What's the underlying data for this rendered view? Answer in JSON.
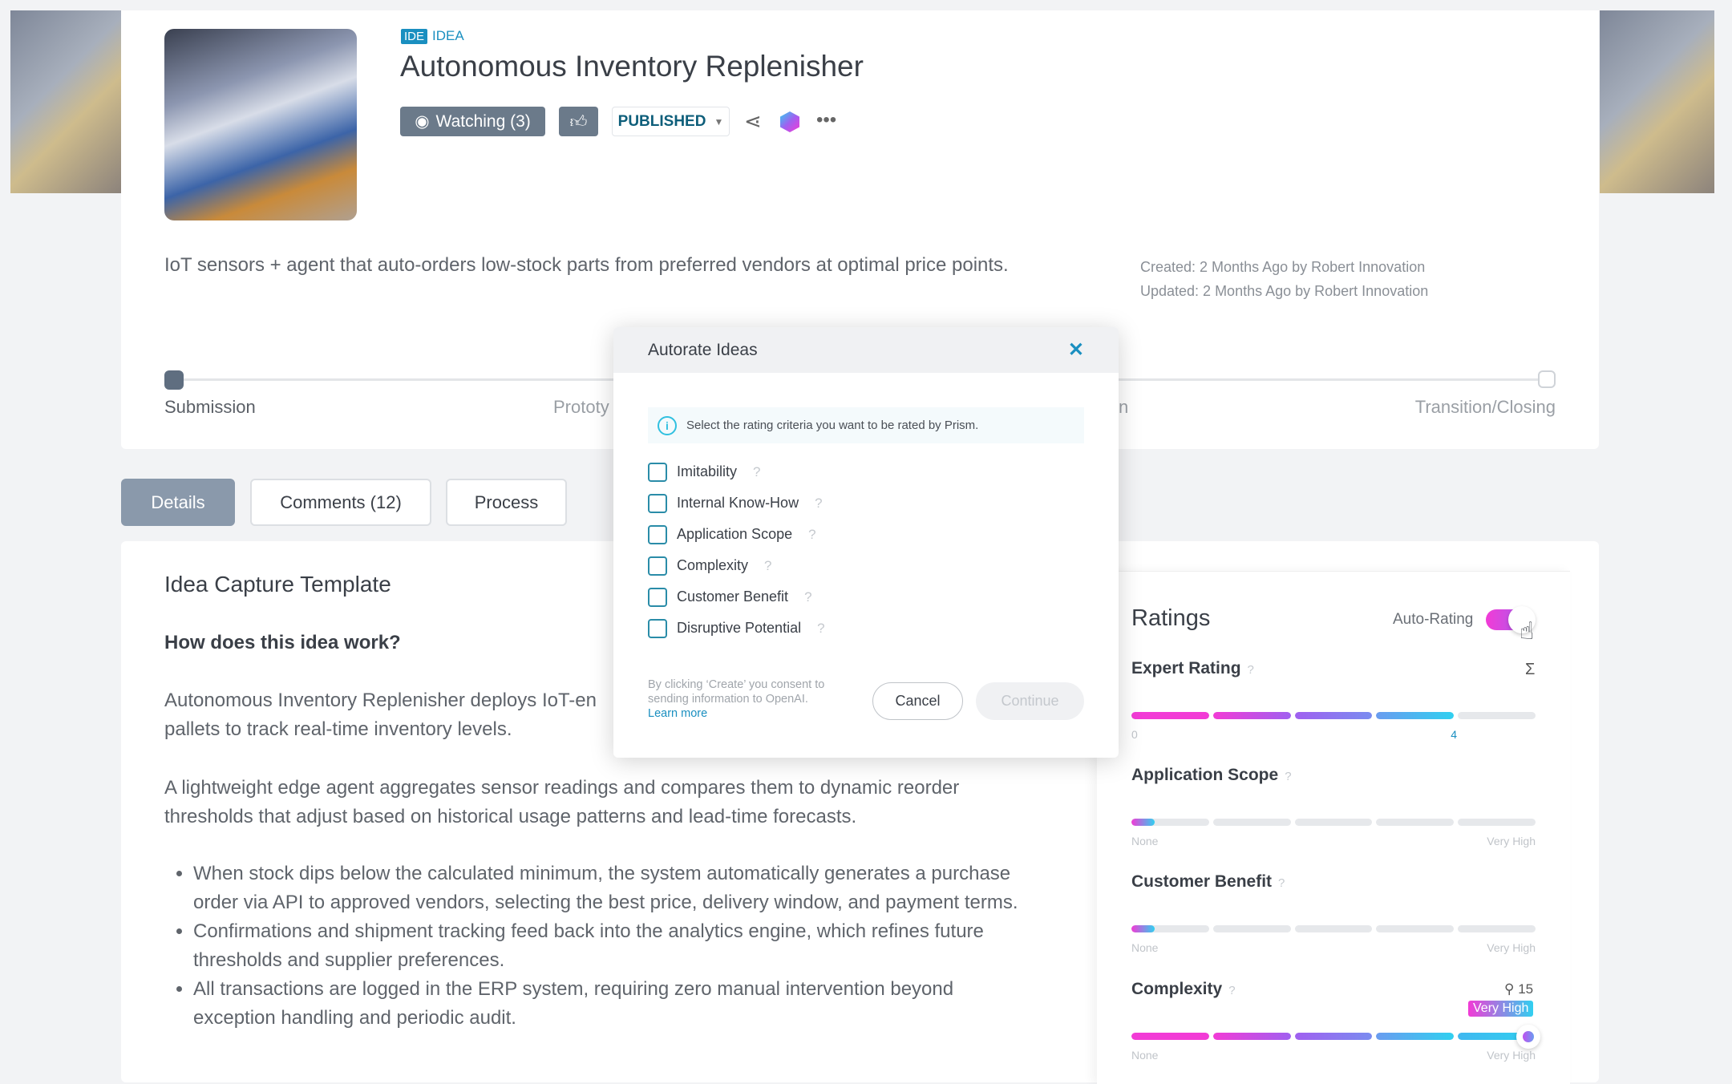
{
  "header": {
    "type_badge": "IDE",
    "type_label": "IDEA",
    "title": "Autonomous Inventory Replenisher",
    "watching_label": "Watching (3)",
    "status_select": "PUBLISHED",
    "description": "IoT sensors + agent that auto-orders low-stock parts from preferred vendors at optimal price points.",
    "created": "Created: 2 Months Ago by Robert Innovation",
    "updated": "Updated: 2 Months Ago by Robert Innovation"
  },
  "stages": [
    {
      "label": "Submission",
      "state": "current"
    },
    {
      "label": "Prototy",
      "state": "pending"
    },
    {
      "label": "n",
      "state": "pending"
    },
    {
      "label": "Transition/Closing",
      "state": "pending"
    }
  ],
  "tabs": [
    {
      "label": "Details",
      "active": true
    },
    {
      "label": "Comments (12)"
    },
    {
      "label": "Process"
    }
  ],
  "content": {
    "template_title": "Idea Capture Template",
    "question": "How does this idea work?",
    "p1": "Autonomous Inventory Replenisher deploys IoT-en",
    "p1b": "pallets to track real-time inventory levels.",
    "p2": "A lightweight edge agent aggregates sensor readings and compares them to dynamic reorder thresholds that adjust based on historical usage patterns and lead-time forecasts.",
    "bullets": [
      "When stock dips below the calculated minimum, the system automatically generates a purchase order via API to approved vendors, selecting the best price, delivery window, and payment terms.",
      "Confirmations and shipment tracking feed back into the analytics engine, which refines future thresholds and supplier preferences.",
      "All transactions are logged in the ERP system, requiring zero manual intervention beyond exception handling and periodic audit."
    ]
  },
  "ratings": {
    "title": "Ratings",
    "auto_rating_label": "Auto-Rating",
    "auto_rating_on": true,
    "items": [
      {
        "label": "Expert Rating",
        "min_label": "0",
        "value_label": "4",
        "value": 4,
        "max": 5
      },
      {
        "label": "Application Scope",
        "min_label": "None",
        "max_label": "Very High",
        "value": 0.3,
        "max": 5
      },
      {
        "label": "Customer Benefit",
        "min_label": "None",
        "max_label": "Very High",
        "value": 0.3,
        "max": 5
      },
      {
        "label": "Complexity",
        "min_label": "None",
        "max_label": "Very High",
        "value": 5,
        "max": 5,
        "voters": "15",
        "badge": "Very High"
      }
    ]
  },
  "modal": {
    "title": "Autorate Ideas",
    "info": "Select the rating criteria you want to be rated by Prism.",
    "criteria": [
      "Imitability",
      "Internal Know-How",
      "Application Scope",
      "Complexity",
      "Customer Benefit",
      "Disruptive Potential"
    ],
    "consent": "By clicking ‘Create’ you consent to sending information to OpenAI.",
    "learn_more": "Learn more",
    "cancel": "Cancel",
    "continue": "Continue"
  },
  "colors": {
    "accent": "#1a8fc0",
    "grad_start": "#f23bd6",
    "grad_mid": "#a060f0",
    "grad_end": "#30d0f0"
  }
}
